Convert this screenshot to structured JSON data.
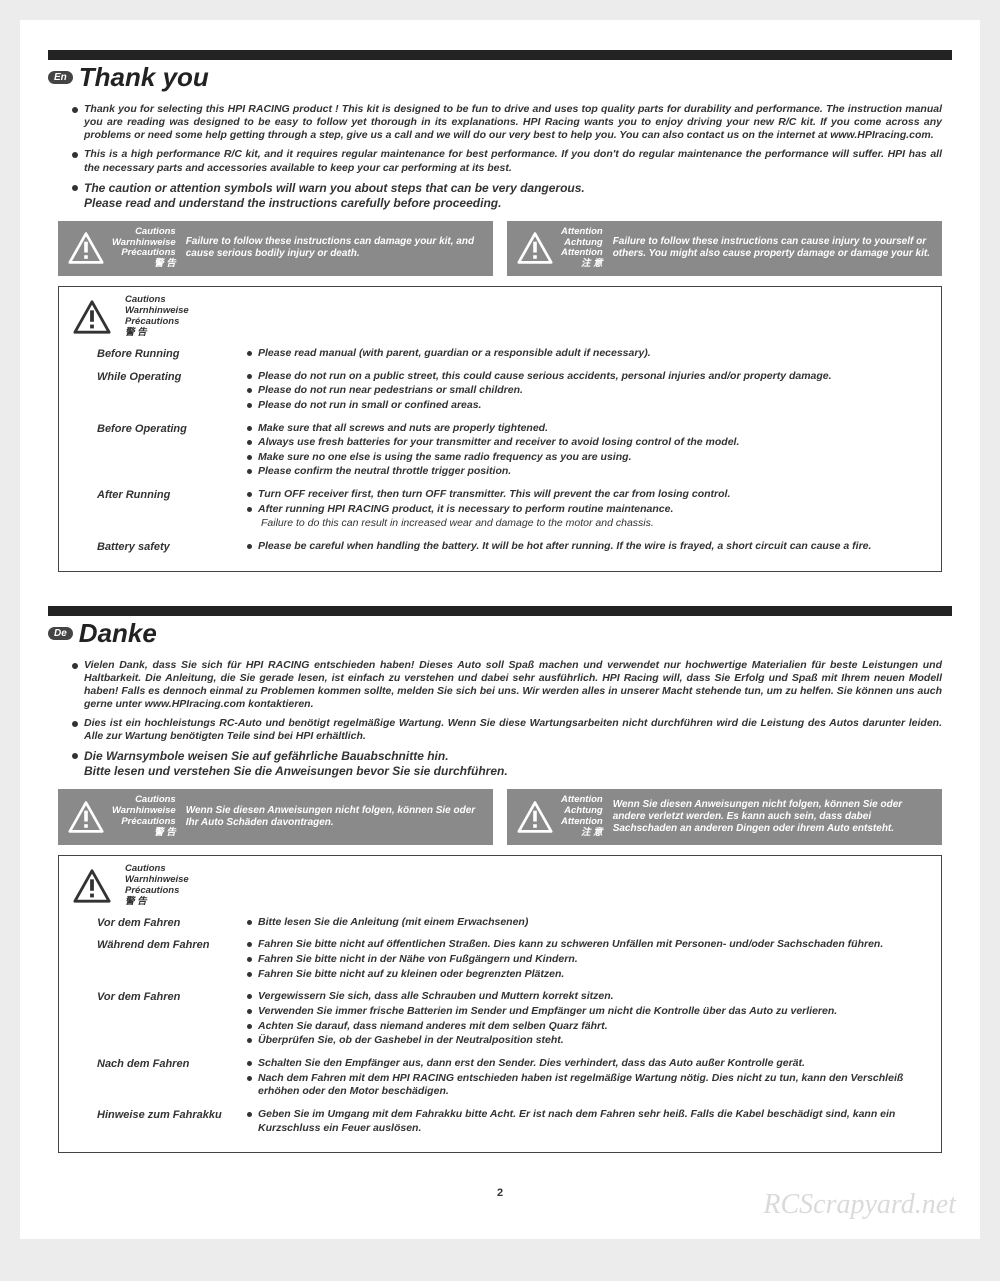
{
  "pageNumber": "2",
  "watermark": "RCScrapyard.net",
  "cautionLabelsML": "Cautions\nWarnhinweise\nPrécautions\n警 告",
  "attentionLabelsML": "Attention\nAchtung\nAttention\n注 意",
  "sections": [
    {
      "langBadge": "En",
      "title": "Thank you",
      "intro": [
        "Thank you for selecting this HPI RACING product ! This kit is designed to be fun to drive and uses top quality parts for durability and performance. The instruction manual you are reading was designed to be easy to follow yet thorough in its explanations.  HPI Racing wants you to enjoy driving your new R/C kit. If you come across any problems or need some help getting through a step, give us a call and we will do our very best to help you. You can also contact us on the internet at www.HPIracing.com.",
        "This is a high performance R/C kit, and it requires regular maintenance for best performance. If you don't do regular maintenance the performance will suffer. HPI has all the necessary parts and accessories available to keep your car performing at its best."
      ],
      "introBold": "The caution or attention symbols will warn you about steps that can be very dangerous.\nPlease read and understand the instructions carefully before proceeding.",
      "warnCaution": "Failure to follow these instructions can damage your kit, and cause serious bodily injury or death.",
      "warnAttention": "Failure to follow these instructions can cause injury to yourself or others. You might also cause property damage or damage your kit.",
      "cautions": [
        {
          "label": "Before Running",
          "items": [
            "Please read manual (with parent, guardian or a responsible adult if necessary)."
          ]
        },
        {
          "label": "While Operating",
          "items": [
            "Please do not run on a public street, this could cause serious accidents, personal injuries and/or property damage.",
            "Please do not run near pedestrians or small children.",
            "Please do not run in small or confined areas."
          ]
        },
        {
          "label": "Before Operating",
          "items": [
            "Make sure that all screws and nuts are properly tightened.",
            "Always use fresh batteries for your transmitter and receiver to avoid losing control of the model.",
            "Make sure no one else is using the same radio frequency as you are using.",
            "Please confirm the neutral throttle trigger position."
          ]
        },
        {
          "label": "After Running",
          "items": [
            "Turn OFF receiver first, then turn OFF transmitter. This will prevent the car from losing control.",
            "After running HPI RACING product, it is necessary to perform routine maintenance.",
            "   Failure to do this can result in increased wear and damage to the motor and chassis."
          ],
          "lastIndent": true
        },
        {
          "label": "Battery safety",
          "items": [
            "Please be careful when handling the battery. It will be hot after running. If the wire is frayed, a short circuit can cause a fire."
          ]
        }
      ]
    },
    {
      "langBadge": "De",
      "title": "Danke",
      "intro": [
        "Vielen Dank, dass Sie sich für HPI RACING entschieden haben! Dieses Auto soll Spaß machen und verwendet nur hochwertige Materialien für beste Leistungen und Haltbarkeit. Die Anleitung, die Sie gerade lesen, ist einfach zu verstehen und dabei sehr ausführlich. HPI Racing will, dass Sie Erfolg und Spaß mit Ihrem neuen Modell haben! Falls es dennoch einmal zu Problemen kommen sollte, melden Sie sich bei uns. Wir werden alles in unserer Macht stehende tun, um zu helfen. Sie können uns auch gerne unter www.HPIracing.com kontaktieren.",
        "Dies ist ein hochleistungs RC-Auto und benötigt regelmäßige Wartung. Wenn Sie diese Wartungsarbeiten nicht durchführen wird die Leistung des Autos darunter leiden. Alle zur Wartung benötigten Teile sind bei HPI erhältlich."
      ],
      "introBold": "Die Warnsymbole weisen Sie auf gefährliche Bauabschnitte hin.\nBitte lesen und verstehen Sie die Anweisungen bevor Sie sie durchführen.",
      "warnCaution": "Wenn Sie diesen Anweisungen nicht folgen, können Sie oder Ihr Auto Schäden davontragen.",
      "warnAttention": "Wenn Sie diesen Anweisungen nicht folgen, können Sie oder andere verletzt werden. Es kann auch sein, dass dabei Sachschaden an anderen Dingen oder ihrem Auto entsteht.",
      "cautions": [
        {
          "label": "Vor dem Fahren",
          "items": [
            "Bitte lesen Sie die Anleitung (mit einem Erwachsenen)"
          ]
        },
        {
          "label": "Während dem Fahren",
          "items": [
            "Fahren Sie bitte nicht auf öffentlichen Straßen. Dies kann zu schweren Unfällen mit Personen- und/oder Sachschaden führen.",
            "Fahren Sie bitte nicht in der Nähe von Fußgängern und Kindern.",
            "Fahren Sie bitte nicht auf zu kleinen oder begrenzten Plätzen."
          ]
        },
        {
          "label": "Vor dem Fahren",
          "items": [
            "Vergewissern Sie sich, dass alle Schrauben und Muttern korrekt sitzen.",
            "Verwenden Sie immer frische Batterien im Sender und Empfänger um nicht die Kontrolle über das Auto zu verlieren.",
            "Achten Sie darauf, dass niemand anderes mit dem selben Quarz fährt.",
            "Überprüfen Sie, ob der Gashebel in der Neutralposition steht."
          ]
        },
        {
          "label": "Nach dem Fahren",
          "items": [
            "Schalten Sie den Empfänger aus, dann erst den Sender. Dies verhindert, dass das Auto außer Kontrolle gerät.",
            "Nach dem Fahren mit dem HPI RACING entschieden haben ist regelmäßige Wartung nötig. Dies nicht zu tun, kann den Verschleiß erhöhen oder den Motor beschädigen."
          ]
        },
        {
          "label": "Hinweise zum Fahrakku",
          "items": [
            "Geben Sie im Umgang mit dem Fahrakku bitte Acht. Er ist nach dem Fahren sehr heiß. Falls die Kabel beschädigt sind, kann ein Kurzschluss ein Feuer auslösen."
          ]
        }
      ]
    }
  ]
}
